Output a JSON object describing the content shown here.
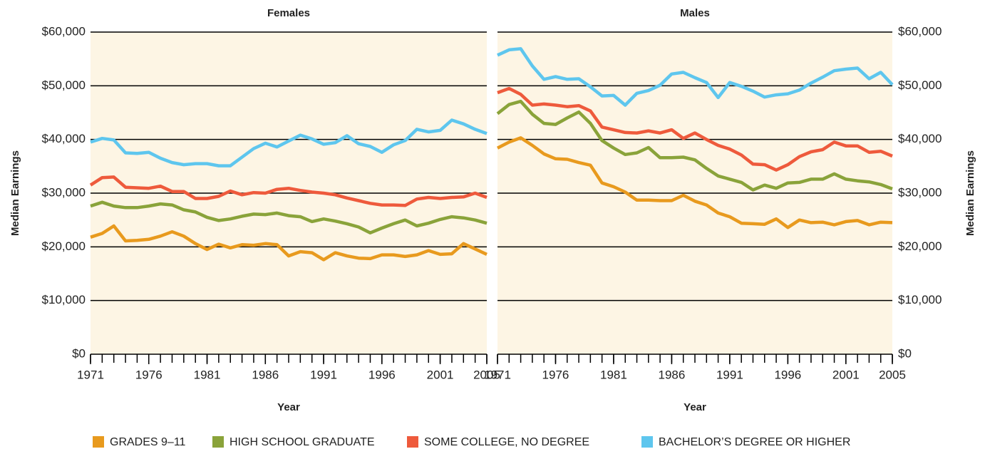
{
  "chart_data": [
    {
      "type": "line",
      "title": "Females",
      "xlabel": "Year",
      "ylabel": "Median Earnings",
      "x": [
        1971,
        1972,
        1973,
        1974,
        1975,
        1976,
        1977,
        1978,
        1979,
        1980,
        1981,
        1982,
        1983,
        1984,
        1985,
        1986,
        1987,
        1988,
        1989,
        1990,
        1991,
        1992,
        1993,
        1994,
        1995,
        1996,
        1997,
        1998,
        1999,
        2000,
        2001,
        2002,
        2003,
        2004,
        2005
      ],
      "xlim": [
        1971,
        2005
      ],
      "xticks": [
        1971,
        1976,
        1981,
        1986,
        1991,
        1996,
        2001,
        2005
      ],
      "ylim": [
        0,
        60000
      ],
      "yticks": [
        {
          "value": 0,
          "label": "$0"
        },
        {
          "value": 10000,
          "label": "$10,000"
        },
        {
          "value": 20000,
          "label": "$20,000"
        },
        {
          "value": 30000,
          "label": "$30,000"
        },
        {
          "value": 40000,
          "label": "$40,000"
        },
        {
          "value": 50000,
          "label": "$50,000"
        },
        {
          "value": 60000,
          "label": "$60,000"
        }
      ],
      "grid": true,
      "series": [
        {
          "name": "GRADES 9–11",
          "color": "#e89a1e",
          "values": [
            21800,
            22500,
            23900,
            21100,
            21200,
            21400,
            22000,
            22800,
            22000,
            20600,
            19500,
            20500,
            19800,
            20400,
            20300,
            20600,
            20400,
            18300,
            19100,
            18900,
            17600,
            18900,
            18300,
            17900,
            17800,
            18500,
            18500,
            18200,
            18500,
            19300,
            18600,
            18700,
            20600,
            19600,
            18600
          ]
        },
        {
          "name": "HIGH SCHOOL GRADUATE",
          "color": "#8aa33a",
          "values": [
            27600,
            28300,
            27600,
            27300,
            27300,
            27600,
            28000,
            27800,
            26900,
            26500,
            25500,
            24900,
            25200,
            25700,
            26100,
            26000,
            26300,
            25800,
            25600,
            24700,
            25200,
            24800,
            24300,
            23700,
            22600,
            23500,
            24300,
            25000,
            23900,
            24400,
            25100,
            25600,
            25400,
            25000,
            24400
          ]
        },
        {
          "name": "SOME COLLEGE, NO DEGREE",
          "color": "#ee5a3c",
          "values": [
            31500,
            32900,
            33000,
            31100,
            31000,
            30900,
            31300,
            30300,
            30300,
            29000,
            29000,
            29400,
            30400,
            29700,
            30100,
            30000,
            30700,
            30900,
            30500,
            30200,
            30000,
            29700,
            29100,
            28600,
            28100,
            27800,
            27800,
            27700,
            28900,
            29200,
            29000,
            29200,
            29300,
            30000,
            29200
          ]
        },
        {
          "name": "BACHELOR’S DEGREE OR HIGHER",
          "color": "#5ec6ee",
          "values": [
            39500,
            40200,
            39900,
            37500,
            37400,
            37600,
            36500,
            35700,
            35300,
            35500,
            35500,
            35100,
            35100,
            36700,
            38300,
            39300,
            38600,
            39700,
            40800,
            40100,
            39100,
            39400,
            40700,
            39200,
            38700,
            37600,
            39000,
            39800,
            41900,
            41400,
            41700,
            43600,
            42900,
            41900,
            41100
          ]
        }
      ]
    },
    {
      "type": "line",
      "title": "Males",
      "xlabel": "Year",
      "ylabel": "Median Earnings",
      "x": [
        1971,
        1972,
        1973,
        1974,
        1975,
        1976,
        1977,
        1978,
        1979,
        1980,
        1981,
        1982,
        1983,
        1984,
        1985,
        1986,
        1987,
        1988,
        1989,
        1990,
        1991,
        1992,
        1993,
        1994,
        1995,
        1996,
        1997,
        1998,
        1999,
        2000,
        2001,
        2002,
        2003,
        2004,
        2005
      ],
      "xlim": [
        1971,
        2005
      ],
      "xticks": [
        1971,
        1976,
        1981,
        1986,
        1991,
        1996,
        2001,
        2005
      ],
      "ylim": [
        0,
        60000
      ],
      "yticks": [
        {
          "value": 0,
          "label": "$0"
        },
        {
          "value": 10000,
          "label": "$10,000"
        },
        {
          "value": 20000,
          "label": "$20,000"
        },
        {
          "value": 30000,
          "label": "$30,000"
        },
        {
          "value": 40000,
          "label": "$40,000"
        },
        {
          "value": 50000,
          "label": "$50,000"
        },
        {
          "value": 60000,
          "label": "$60,000"
        }
      ],
      "grid": true,
      "series": [
        {
          "values": [
            38400,
            39500,
            40300,
            38900,
            37300,
            36400,
            36300,
            35700,
            35200,
            31900,
            31200,
            30200,
            28700,
            28700,
            28600,
            28600,
            29600,
            28500,
            27800,
            26300,
            25600,
            24400,
            24300,
            24200,
            25200,
            23600,
            25000,
            24500,
            24600,
            24100,
            24700,
            24900,
            24100,
            24600,
            24500
          ]
        },
        {
          "values": [
            44800,
            46500,
            47100,
            44700,
            43000,
            42800,
            44000,
            45100,
            43000,
            39800,
            38400,
            37200,
            37500,
            38500,
            36600,
            36600,
            36700,
            36200,
            34600,
            33200,
            32600,
            32000,
            30600,
            31500,
            30900,
            31900,
            32000,
            32600,
            32600,
            33600,
            32600,
            32300,
            32100,
            31600,
            30800
          ]
        },
        {
          "values": [
            48700,
            49500,
            48400,
            46400,
            46600,
            46400,
            46100,
            46300,
            45300,
            42300,
            41800,
            41300,
            41200,
            41600,
            41200,
            41800,
            40200,
            41200,
            40000,
            38900,
            38200,
            37100,
            35400,
            35300,
            34300,
            35300,
            36800,
            37700,
            38100,
            39500,
            38800,
            38800,
            37600,
            37800,
            36900
          ]
        },
        {
          "values": [
            55700,
            56700,
            56900,
            53700,
            51200,
            51700,
            51200,
            51300,
            49800,
            48100,
            48200,
            46400,
            48600,
            49100,
            50100,
            52200,
            52500,
            51500,
            50600,
            47800,
            50600,
            49900,
            49000,
            47900,
            48300,
            48500,
            49200,
            50500,
            51600,
            52800,
            53100,
            53300,
            51300,
            52500,
            50200
          ]
        }
      ]
    }
  ]
}
